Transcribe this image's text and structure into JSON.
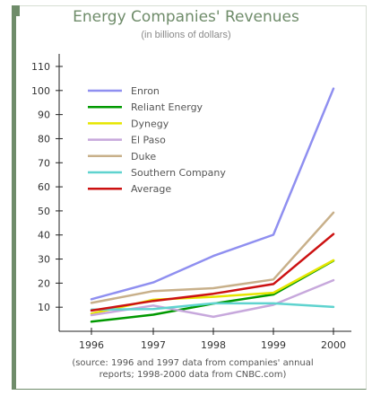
{
  "chart_data": {
    "type": "line",
    "title": "Energy Companies' Revenues",
    "subtitle": "(in billions of dollars)",
    "note_line1": "(source: 1996 and 1997 data from companies' annual",
    "note_line2": "reports; 1998-2000 data from CNBC.com)",
    "x": [
      "1996",
      "1997",
      "1998",
      "1999",
      "2000"
    ],
    "ylim": [
      0,
      110
    ],
    "yticks": [
      10,
      20,
      30,
      40,
      50,
      60,
      70,
      80,
      90,
      100,
      110
    ],
    "grid": false,
    "legend_position": "top-left",
    "series": [
      {
        "name": "Enron",
        "color": "#8f8ff0",
        "values": [
          13.3,
          20.3,
          31.3,
          40.1,
          100.8
        ]
      },
      {
        "name": "Reliant Energy",
        "color": "#009900",
        "values": [
          4.0,
          6.9,
          11.5,
          15.3,
          29.3
        ]
      },
      {
        "name": "Dynegy",
        "color": "#e6e600",
        "values": [
          7.3,
          13.1,
          14.3,
          16.0,
          29.5
        ]
      },
      {
        "name": "El Paso",
        "color": "#c7a8dc",
        "values": [
          6.7,
          10.7,
          6.0,
          11.0,
          21.2
        ]
      },
      {
        "name": "Duke",
        "color": "#c8b08a",
        "values": [
          11.8,
          16.7,
          17.9,
          21.5,
          49.3
        ]
      },
      {
        "name": "Southern Company",
        "color": "#5fd3cf",
        "values": [
          9.0,
          9.2,
          11.6,
          11.6,
          10.1
        ]
      },
      {
        "name": "Average",
        "color": "#cc1111",
        "values": [
          8.6,
          12.6,
          15.6,
          19.6,
          40.4
        ]
      }
    ]
  }
}
